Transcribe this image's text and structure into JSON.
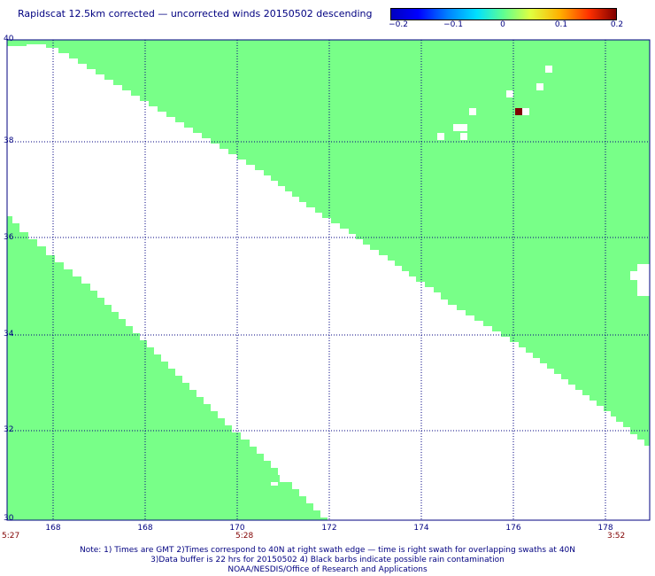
{
  "title": "Rapidscat 12.5km corrected — uncorrected winds 20150502 descending",
  "colorbar": {
    "labels": [
      "−0.2",
      "−0.1",
      "0",
      "0.1",
      "0.2"
    ]
  },
  "axes": {
    "lat_labels": [
      "40",
      "38",
      "36",
      "34",
      "32",
      "30"
    ],
    "lon_labels": [
      "168",
      "168",
      "170",
      "172",
      "174",
      "176",
      "178"
    ]
  },
  "times": {
    "left": "5:27",
    "middle": "5:28",
    "right": "3:52"
  },
  "notes": {
    "line1": "Note: 1) Times are GMT 2)Times correspond to 40N at right swath edge — time is right swath for overlapping swaths at 40N",
    "line2": "3)Data buffer is 22 hrs for 20150502 4) Black barbs indicate possible rain contamination",
    "line3": "NOAA/NESDIS/Office of Research and Applications"
  },
  "colors": {
    "swath": "#78ff88",
    "grid": "#000080",
    "anomaly": "#800000"
  }
}
